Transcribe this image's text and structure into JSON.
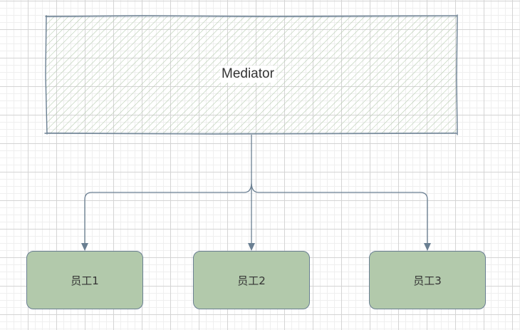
{
  "mediator": {
    "label": "Mediator"
  },
  "employees": [
    {
      "label": "员工1"
    },
    {
      "label": "员工2"
    },
    {
      "label": "员工3"
    }
  ],
  "colors": {
    "stroke": "#6a7f92",
    "hatch": "#b2c9ab",
    "node_fill": "#b2c9ab",
    "grid": "#d4d4d4",
    "text": "#333333"
  }
}
